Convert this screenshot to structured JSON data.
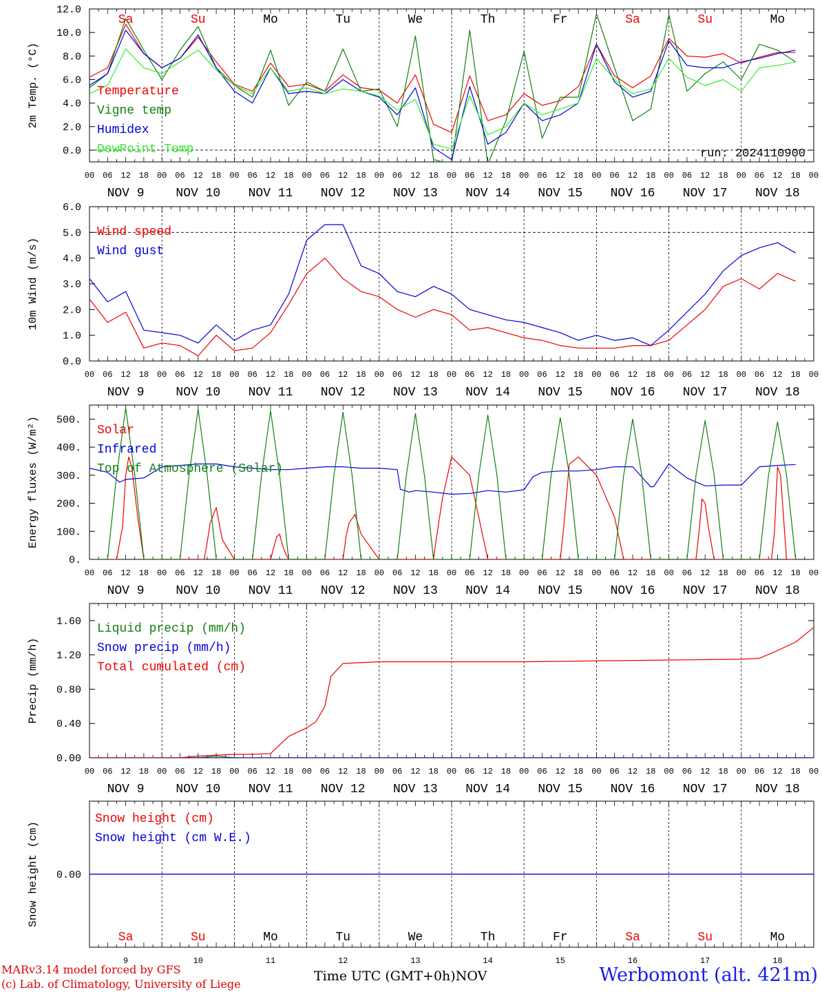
{
  "footer": {
    "credit_line1": "MARv3.14 model forced by GFS",
    "credit_line2": "(c) Lab. of Climatology, University of Liege",
    "xaxis_label": "Time UTC (GMT+0h)",
    "month_label": "NOV",
    "station": "Werbomont (alt. 421m)"
  },
  "colors": {
    "red": "#ee0000",
    "dark_green": "#108010",
    "blue": "#0000dd",
    "light_green": "#30ee30",
    "purple": "#7a2c8c"
  },
  "days": {
    "names": [
      "Sa",
      "Su",
      "Mo",
      "Tu",
      "We",
      "Th",
      "Fr",
      "Sa",
      "Su",
      "Mo"
    ],
    "weekend": [
      true,
      true,
      false,
      false,
      false,
      false,
      false,
      true,
      true,
      false
    ],
    "dates": [
      "9",
      "10",
      "11",
      "12",
      "13",
      "14",
      "15",
      "16",
      "17",
      "18"
    ],
    "date_labels": [
      "NOV  9",
      "NOV 10",
      "NOV 11",
      "NOV 12",
      "NOV 13",
      "NOV 14",
      "NOV 15",
      "NOV 16",
      "NOV 17",
      "NOV 18"
    ],
    "hour_ticks": [
      "00",
      "06",
      "12",
      "18"
    ],
    "final_tick": "00"
  },
  "chart_data": [
    {
      "type": "line",
      "ylabel": "2m Temp. (°C)",
      "ylim": [
        -1,
        12
      ],
      "yticks": [
        "12.0",
        "10.0",
        "8.0",
        "6.0",
        "4.0",
        "2.0",
        "0.0"
      ],
      "ytick_values": [
        12,
        10,
        8,
        6,
        4,
        2,
        0
      ],
      "dashed_y": [
        0
      ],
      "annotation": "run: 2024110900",
      "x_hours": [
        0,
        6,
        12,
        18,
        24,
        30,
        36,
        42,
        48,
        54,
        60,
        66,
        72,
        78,
        84,
        90,
        96,
        102,
        108,
        114,
        120,
        126,
        132,
        138,
        144,
        150,
        156,
        162,
        168,
        174,
        180,
        186,
        192,
        198,
        204,
        210,
        216,
        222,
        228,
        234
      ],
      "series": [
        {
          "name": "Temperature",
          "color": "#ee0000",
          "values": [
            6.2,
            7.0,
            10.7,
            8.2,
            7.0,
            7.8,
            9.6,
            7.5,
            5.6,
            5.0,
            7.4,
            5.4,
            5.6,
            5.0,
            6.4,
            5.3,
            5.1,
            4.0,
            6.4,
            2.2,
            1.5,
            6.3,
            2.5,
            3.0,
            4.8,
            3.8,
            4.2,
            5.4,
            9.0,
            6.3,
            5.3,
            6.3,
            9.5,
            8.0,
            7.9,
            8.2,
            7.4,
            7.9,
            8.3,
            8.3
          ]
        },
        {
          "name": "Vigne temp",
          "color": "#108010",
          "values": [
            5.3,
            6.5,
            11.2,
            8.5,
            6.0,
            8.5,
            10.5,
            7.0,
            5.5,
            4.5,
            8.5,
            3.8,
            5.8,
            5.0,
            8.6,
            5.0,
            5.2,
            2.0,
            9.7,
            -0.8,
            -1.2,
            10.2,
            -1.2,
            2.5,
            8.4,
            1.0,
            4.5,
            4.5,
            11.6,
            7.0,
            2.5,
            3.5,
            11.5,
            5.0,
            6.5,
            7.5,
            6.0,
            9.0,
            8.5,
            7.5
          ]
        },
        {
          "name": "Humidex",
          "color": "#0000dd",
          "values": [
            5.5,
            6.5,
            10.2,
            8.2,
            7.0,
            7.8,
            9.8,
            7.0,
            5.0,
            4.0,
            7.0,
            4.8,
            5.0,
            4.8,
            6.0,
            5.0,
            4.5,
            3.0,
            5.3,
            0.2,
            -0.8,
            5.4,
            0.5,
            1.5,
            4.0,
            2.5,
            3.0,
            4.0,
            9.0,
            5.8,
            4.5,
            5.0,
            9.3,
            7.2,
            7.0,
            7.0,
            7.5,
            7.8,
            8.2,
            8.5
          ]
        },
        {
          "name": "DewPoint Temp",
          "color": "#30ee30",
          "values": [
            4.8,
            5.5,
            8.6,
            7.0,
            6.5,
            7.5,
            8.5,
            6.8,
            5.5,
            4.8,
            7.0,
            5.0,
            5.3,
            4.8,
            5.2,
            5.0,
            4.6,
            3.4,
            4.3,
            0.5,
            0.1,
            4.6,
            1.3,
            2.0,
            4.0,
            3.0,
            3.5,
            4.0,
            7.8,
            6.0,
            4.8,
            5.2,
            7.8,
            6.2,
            5.5,
            6.0,
            5.0,
            7.0,
            7.2,
            7.5
          ]
        }
      ]
    },
    {
      "type": "line",
      "ylabel": "10m Wind (m/s)",
      "ylim": [
        0,
        6
      ],
      "yticks": [
        "6.0",
        "5.0",
        "4.0",
        "3.0",
        "2.0",
        "1.0",
        "0.0"
      ],
      "ytick_values": [
        6,
        5,
        4,
        3,
        2,
        1,
        0
      ],
      "dashed_y": [
        5
      ],
      "x_hours": [
        0,
        6,
        12,
        18,
        24,
        30,
        36,
        42,
        48,
        54,
        60,
        66,
        72,
        78,
        84,
        90,
        96,
        102,
        108,
        114,
        120,
        126,
        132,
        138,
        144,
        150,
        156,
        162,
        168,
        174,
        180,
        186,
        192,
        198,
        204,
        210,
        216,
        222,
        228,
        234
      ],
      "series": [
        {
          "name": "Wind speed",
          "color": "#ee0000",
          "values": [
            2.4,
            1.5,
            1.9,
            0.5,
            0.7,
            0.6,
            0.2,
            1.0,
            0.4,
            0.5,
            1.1,
            2.2,
            3.4,
            4.0,
            3.2,
            2.7,
            2.5,
            2.0,
            1.7,
            2.0,
            1.8,
            1.2,
            1.3,
            1.1,
            0.9,
            0.8,
            0.6,
            0.5,
            0.5,
            0.5,
            0.6,
            0.6,
            0.8,
            1.4,
            2.0,
            2.9,
            3.2,
            2.8,
            3.4,
            3.1
          ]
        },
        {
          "name": "Wind gust",
          "color": "#0000dd",
          "values": [
            3.2,
            2.3,
            2.7,
            1.2,
            1.1,
            1.0,
            0.7,
            1.4,
            0.8,
            1.2,
            1.4,
            2.6,
            4.7,
            5.3,
            5.3,
            3.7,
            3.4,
            2.7,
            2.5,
            2.9,
            2.6,
            2.0,
            1.8,
            1.6,
            1.5,
            1.3,
            1.1,
            0.8,
            1.0,
            0.8,
            0.9,
            0.6,
            1.2,
            1.9,
            2.6,
            3.5,
            4.1,
            4.4,
            4.6,
            4.2
          ]
        }
      ]
    },
    {
      "type": "line",
      "ylabel": "Energy fluxes (W/m²)",
      "ylim": [
        0,
        550
      ],
      "yticks": [
        "500.",
        "400.",
        "300.",
        "200.",
        "100.",
        "0."
      ],
      "ytick_values": [
        500,
        400,
        300,
        200,
        100,
        0
      ],
      "dashed_y": [],
      "series": [
        {
          "name": "Solar",
          "color": "#ee0000",
          "x": [
            0,
            6,
            9,
            11,
            12,
            13,
            14,
            16,
            18,
            24,
            30,
            33,
            36,
            38,
            39,
            40,
            42,
            44,
            48,
            54,
            57,
            60,
            61,
            62,
            63,
            64,
            65,
            66,
            68,
            72,
            78,
            81,
            84,
            85,
            86,
            88,
            90,
            96,
            102,
            108,
            111,
            114,
            115,
            117,
            120,
            126,
            129,
            132,
            133,
            135,
            138,
            144,
            150,
            153,
            156,
            157,
            159,
            162,
            168,
            174,
            177,
            180,
            181,
            183,
            186,
            192,
            198,
            201,
            202,
            203,
            204,
            205,
            207,
            210,
            216,
            222,
            225,
            226,
            227,
            228,
            229,
            231,
            234
          ],
          "values": [
            0,
            0,
            0,
            120,
            300,
            365,
            330,
            150,
            0,
            0,
            0,
            0,
            0,
            0,
            60,
            130,
            185,
            70,
            0,
            0,
            0,
            0,
            40,
            80,
            90,
            50,
            20,
            0,
            0,
            0,
            0,
            0,
            0,
            80,
            130,
            160,
            90,
            0,
            0,
            0,
            0,
            0,
            80,
            220,
            365,
            300,
            150,
            0,
            0,
            0,
            0,
            0,
            0,
            0,
            0,
            100,
            340,
            365,
            300,
            150,
            0,
            0,
            0,
            0,
            0,
            0,
            0,
            0,
            100,
            215,
            200,
            120,
            0,
            0,
            0,
            0,
            0,
            0,
            100,
            330,
            300,
            0,
            0
          ]
        },
        {
          "name": "Infrared",
          "color": "#0000dd",
          "x": [
            0,
            6,
            10,
            12,
            18,
            24,
            30,
            36,
            42,
            48,
            54,
            60,
            66,
            72,
            78,
            84,
            90,
            96,
            102,
            103,
            106,
            108,
            114,
            120,
            126,
            132,
            138,
            144,
            147,
            150,
            156,
            162,
            168,
            174,
            180,
            186,
            187,
            192,
            198,
            204,
            210,
            216,
            222,
            228,
            234
          ],
          "values": [
            325,
            310,
            275,
            285,
            290,
            330,
            335,
            340,
            340,
            330,
            325,
            320,
            320,
            325,
            330,
            330,
            325,
            325,
            320,
            250,
            240,
            245,
            240,
            232,
            235,
            245,
            240,
            248,
            295,
            310,
            315,
            315,
            320,
            330,
            330,
            258,
            260,
            340,
            290,
            262,
            265,
            265,
            330,
            335,
            338
          ]
        },
        {
          "name": "Top of Atmosphere (Solar)",
          "color": "#108010",
          "x": [
            0,
            6,
            9,
            12,
            15,
            18,
            24,
            30,
            33,
            36,
            39,
            42,
            48,
            54,
            57,
            60,
            63,
            66,
            72,
            78,
            81,
            84,
            87,
            90,
            96,
            102,
            105,
            108,
            111,
            114,
            120,
            126,
            129,
            132,
            135,
            138,
            144,
            150,
            153,
            156,
            159,
            162,
            168,
            174,
            177,
            180,
            183,
            186,
            192,
            198,
            201,
            204,
            207,
            210,
            216,
            222,
            225,
            228,
            231,
            234
          ],
          "values": [
            0,
            0,
            300,
            540,
            300,
            0,
            0,
            0,
            300,
            535,
            300,
            0,
            0,
            0,
            300,
            530,
            300,
            0,
            0,
            0,
            300,
            525,
            300,
            0,
            0,
            0,
            300,
            520,
            300,
            0,
            0,
            0,
            300,
            515,
            300,
            0,
            0,
            0,
            300,
            505,
            300,
            0,
            0,
            0,
            300,
            500,
            300,
            0,
            0,
            0,
            300,
            495,
            300,
            0,
            0,
            0,
            300,
            490,
            300,
            0
          ]
        }
      ]
    },
    {
      "type": "line",
      "ylabel": "Precip (mm/h)",
      "ylim": [
        0,
        1.8
      ],
      "yticks": [
        "1.60",
        "1.20",
        "0.80",
        "0.40",
        "0.00"
      ],
      "ytick_values": [
        1.6,
        1.2,
        0.8,
        0.4,
        0
      ],
      "dashed_y": [],
      "series": [
        {
          "name": "Liquid precip (mm/h)",
          "color": "#108010",
          "x": [
            0,
            30,
            36,
            42,
            48,
            54,
            60,
            61,
            62,
            63,
            64,
            65,
            66,
            68,
            69,
            71,
            72,
            74,
            75,
            77,
            78,
            79,
            80,
            81,
            82,
            83,
            84,
            85,
            86,
            88,
            90,
            96,
            102,
            240,
            246,
            252,
            258,
            264,
            270,
            276,
            282,
            288,
            294,
            300,
            306,
            312,
            318,
            324,
            330,
            336,
            342,
            348,
            354,
            360
          ],
          "values": [
            0,
            0,
            0,
            0.02,
            0,
            0,
            0,
            0,
            0,
            0,
            0,
            0,
            0,
            0,
            0,
            0,
            0,
            0,
            0,
            0,
            0,
            0,
            0,
            0,
            0,
            0,
            0,
            0,
            0,
            0,
            0,
            0,
            0,
            0,
            0,
            0,
            0,
            0,
            0,
            0,
            0,
            0,
            0,
            0,
            0,
            0,
            0,
            0,
            0,
            0,
            0,
            0,
            0,
            0
          ]
        },
        {
          "name": "Snow precip (mm/h)",
          "color": "#0000dd",
          "x": [
            0,
            240
          ],
          "values": [
            0,
            0
          ]
        },
        {
          "name": "Total cumulated (cm)",
          "color": "#ee0000",
          "x": [
            0,
            30,
            36,
            48,
            54,
            60,
            66,
            72,
            75,
            78,
            80,
            84,
            90,
            96,
            108,
            132,
            144,
            168,
            192,
            216,
            222,
            228,
            234,
            240
          ],
          "values": [
            0,
            0,
            0.02,
            0.04,
            0.04,
            0.05,
            0.25,
            0.35,
            0.42,
            0.6,
            0.95,
            1.1,
            1.11,
            1.12,
            1.12,
            1.12,
            1.12,
            1.13,
            1.14,
            1.15,
            1.16,
            1.25,
            1.35,
            1.52
          ]
        }
      ]
    },
    {
      "type": "line",
      "ylabel": "Snow height (cm)",
      "ylim": [
        -1,
        1
      ],
      "yticks": [
        "0.00"
      ],
      "ytick_values": [
        0
      ],
      "dashed_y": [],
      "series": [
        {
          "name": "Snow height (cm)",
          "color": "#ee0000",
          "x": [
            0,
            240
          ],
          "values": [
            0,
            0
          ]
        },
        {
          "name": "Snow height (cm W.E.)",
          "color": "#0000dd",
          "x": [
            0,
            240
          ],
          "values": [
            0,
            0
          ]
        }
      ]
    }
  ]
}
